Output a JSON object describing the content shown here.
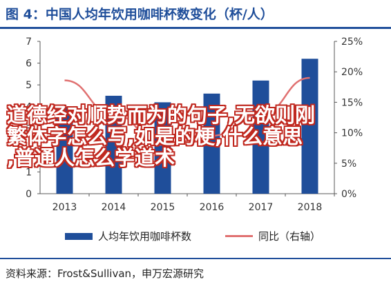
{
  "header": {
    "title": "图 4：中国人均年饮用咖啡杯数变化（杯/人）"
  },
  "overlay": {
    "line1": "道德经对顺势而为的句子,无欲则刚",
    "line2": "繁体字怎么写,如是的梗,什么意思",
    "line3": ",普通人怎么学道术"
  },
  "legend": {
    "bar_label": "人均年饮用咖啡杯数",
    "line_label": "同比（右轴）"
  },
  "footer": {
    "source": "资料来源：Frost&Sullivan，申万宏源研究"
  },
  "chart_data": {
    "type": "bar",
    "categories": [
      "2013",
      "2014",
      "2015",
      "2016",
      "2017",
      "2018"
    ],
    "series": [
      {
        "name": "人均年饮用咖啡杯数",
        "type": "bar",
        "axis": "left",
        "values": [
          4.0,
          4.5,
          4.2,
          4.6,
          5.2,
          6.2
        ]
      },
      {
        "name": "同比（右轴）",
        "type": "line",
        "axis": "right",
        "values": [
          0.186,
          0.13,
          0.08,
          0.095,
          0.13,
          0.19
        ]
      }
    ],
    "y_left": {
      "min": 0,
      "max": 7,
      "ticks": [
        "0",
        "1",
        "2",
        "3",
        "4",
        "5",
        "6",
        "7"
      ]
    },
    "y_right": {
      "min": 0,
      "max": 0.25,
      "ticks": [
        "0%",
        "5%",
        "10%",
        "15%",
        "20%",
        "25%"
      ]
    },
    "colors": {
      "bar": "#1f4e9a",
      "line": "#e07070"
    },
    "grid": false
  }
}
